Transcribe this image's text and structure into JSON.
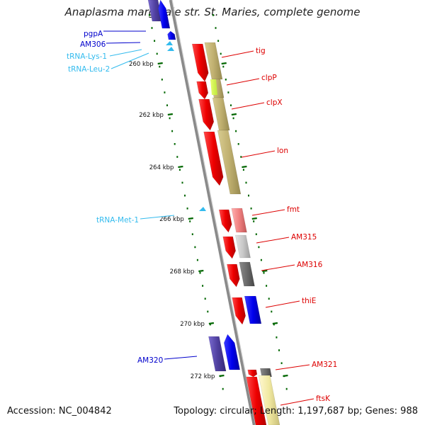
{
  "title": "Anaplasma marginale str. St. Maries, complete genome",
  "footer": {
    "accession": "Accession: NC_004842",
    "summary": "Topology: circular; Length: 1,197,687 bp; Genes: 988"
  },
  "colors": {
    "cds_forward": "#0000ee",
    "cds_forward_dark": "#5040a0",
    "cds_reverse": "#ee0000",
    "trna": "#33bbee",
    "label_forward": "#0000cc",
    "label_reverse": "#dd0000",
    "label_trna": "#33bbee",
    "tick": "#006600"
  },
  "left_labels": [
    {
      "id": "pgpA",
      "text": "pgpA",
      "kind": "cds"
    },
    {
      "id": "AM306",
      "text": "AM306",
      "kind": "cds"
    },
    {
      "id": "tRNA-Lys-1",
      "text": "tRNA-Lys-1",
      "kind": "trna"
    },
    {
      "id": "tRNA-Leu-2",
      "text": "tRNA-Leu-2",
      "kind": "trna"
    },
    {
      "id": "tRNA-Met-1",
      "text": "tRNA-Met-1",
      "kind": "trna"
    },
    {
      "id": "AM320",
      "text": "AM320",
      "kind": "cds"
    }
  ],
  "right_labels": [
    {
      "id": "tig",
      "text": "tig"
    },
    {
      "id": "clpP",
      "text": "clpP"
    },
    {
      "id": "clpX",
      "text": "clpX"
    },
    {
      "id": "lon",
      "text": "lon"
    },
    {
      "id": "fmt",
      "text": "fmt"
    },
    {
      "id": "AM315",
      "text": "AM315"
    },
    {
      "id": "AM316",
      "text": "AM316"
    },
    {
      "id": "thiE",
      "text": "thiE"
    },
    {
      "id": "AM321",
      "text": "AM321"
    },
    {
      "id": "ftsK",
      "text": "ftsK"
    }
  ],
  "kbp_ticks": [
    "260 kbp",
    "262 kbp",
    "264 kbp",
    "266 kbp",
    "268 kbp",
    "270 kbp",
    "272 kbp"
  ]
}
